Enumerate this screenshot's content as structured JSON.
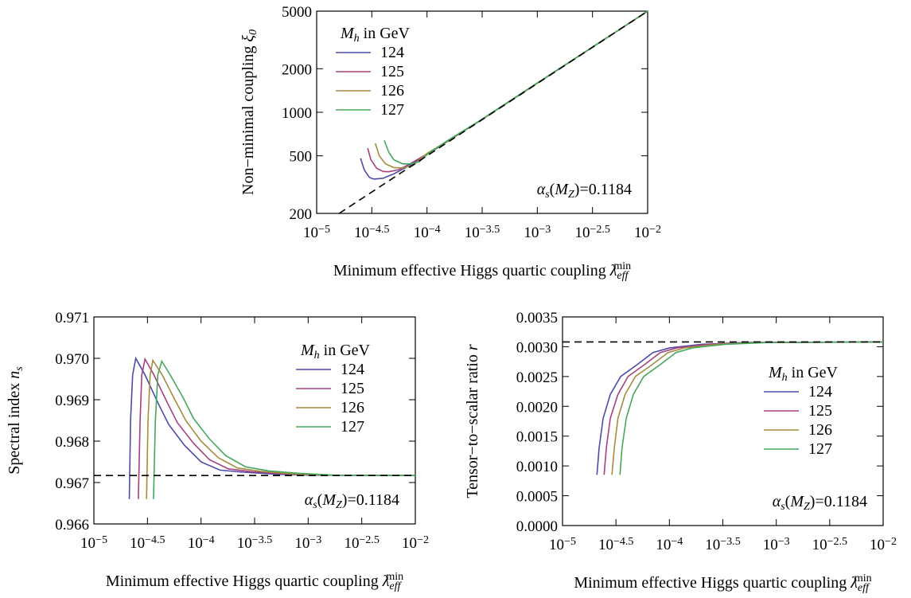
{
  "chart_data": [
    {
      "type": "line",
      "xscale": "log",
      "yscale": "log",
      "xlim": [
        1e-05,
        0.01
      ],
      "ylim": [
        200,
        5000
      ],
      "xticks": [
        {
          "value": 1e-05,
          "label": {
            "base": "10",
            "exponent": "−5"
          }
        },
        {
          "value": 3.1622776601683795e-05,
          "label": {
            "base": "10",
            "exponent": "−4.5"
          }
        },
        {
          "value": 0.0001,
          "label": {
            "base": "10",
            "exponent": "−4"
          }
        },
        {
          "value": 0.00031622776601683794,
          "label": {
            "base": "10",
            "exponent": "−3.5"
          }
        },
        {
          "value": 0.001,
          "label": {
            "base": "10",
            "exponent": "−3"
          }
        },
        {
          "value": 0.0031622776601683794,
          "label": {
            "base": "10",
            "exponent": "−2.5"
          }
        },
        {
          "value": 0.01,
          "label": {
            "base": "10",
            "exponent": "−2"
          }
        }
      ],
      "yticks": [
        200,
        500,
        1000,
        2000,
        5000
      ],
      "x_label": [
        {
          "text": "Minimum effective Higgs quartic coupling  "
        },
        {
          "text": "λ",
          "style": "i"
        },
        {
          "text": "eff",
          "style": "sub"
        },
        {
          "text": "min",
          "style": "sup"
        }
      ],
      "y_label": [
        {
          "text": "Non−minimal coupling "
        },
        {
          "text": "ξ",
          "style": "i"
        },
        {
          "text": "0",
          "style": "sub"
        }
      ],
      "legend_title": [
        {
          "text": "M",
          "style": "i"
        },
        {
          "text": "h",
          "style": "sub"
        },
        {
          "text": " in GeV"
        }
      ],
      "legend": "upper left",
      "annotation": [
        {
          "text": "α",
          "style": "i"
        },
        {
          "text": "s",
          "style": "sub"
        },
        {
          "text": "("
        },
        {
          "text": "M",
          "style": "i"
        },
        {
          "text": "Z",
          "style": "sub"
        },
        {
          "text": ")=0.1184"
        }
      ],
      "series": [
        {
          "name": "124",
          "color": "#4b4ba8",
          "x": [
            2.5e-05,
            2.7e-05,
            3e-05,
            3.3e-05,
            4e-05,
            5e-05,
            7e-05,
            0.0001,
            0.0003,
            0.001,
            0.01
          ],
          "values": [
            480,
            400,
            355,
            345,
            350,
            375,
            430,
            510,
            870,
            1590,
            5000
          ]
        },
        {
          "name": "125",
          "color": "#a5407e",
          "x": [
            2.9e-05,
            3.1e-05,
            3.5e-05,
            4e-05,
            4.5e-05,
            5.5e-05,
            7e-05,
            0.0001,
            0.0003,
            0.001,
            0.01
          ],
          "values": [
            565,
            470,
            410,
            390,
            388,
            400,
            440,
            515,
            870,
            1590,
            5000
          ]
        },
        {
          "name": "126",
          "color": "#a58c3e",
          "x": [
            3.4e-05,
            3.7e-05,
            4.2e-05,
            5e-05,
            6e-05,
            7.5e-05,
            0.0001,
            0.00015,
            0.0003,
            0.001,
            0.01
          ],
          "values": [
            610,
            500,
            440,
            415,
            412,
            430,
            520,
            625,
            872,
            1592,
            5000
          ]
        },
        {
          "name": "127",
          "color": "#44a85a",
          "x": [
            4.1e-05,
            4.5e-05,
            5e-05,
            6e-05,
            7e-05,
            8.5e-05,
            0.0001,
            0.00015,
            0.0003,
            0.001,
            0.01
          ],
          "values": [
            640,
            530,
            470,
            440,
            440,
            455,
            510,
            630,
            875,
            1595,
            5000
          ]
        },
        {
          "color": "#000000",
          "dashed": true,
          "x": [
            1.6e-05,
            0.01
          ],
          "values": [
            200,
            5000
          ]
        }
      ]
    },
    {
      "type": "line",
      "xscale": "log",
      "yscale": "linear",
      "xlim": [
        1e-05,
        0.01
      ],
      "ylim": [
        0.966,
        0.971
      ],
      "xticks": [
        {
          "value": 1e-05,
          "label": {
            "base": "10",
            "exponent": "−5"
          }
        },
        {
          "value": 3.1622776601683795e-05,
          "label": {
            "base": "10",
            "exponent": "−4.5"
          }
        },
        {
          "value": 0.0001,
          "label": {
            "base": "10",
            "exponent": "−4"
          }
        },
        {
          "value": 0.00031622776601683794,
          "label": {
            "base": "10",
            "exponent": "−3.5"
          }
        },
        {
          "value": 0.001,
          "label": {
            "base": "10",
            "exponent": "−3"
          }
        },
        {
          "value": 0.0031622776601683794,
          "label": {
            "base": "10",
            "exponent": "−2.5"
          }
        },
        {
          "value": 0.01,
          "label": {
            "base": "10",
            "exponent": "−2"
          }
        }
      ],
      "yticks": [
        0.966,
        0.967,
        0.968,
        0.969,
        {
          "value": 0.97,
          "label": "0.970"
        },
        0.971
      ],
      "x_label": [
        {
          "text": "Minimum effective Higgs quartic coupling  "
        },
        {
          "text": "λ",
          "style": "i"
        },
        {
          "text": "eff",
          "style": "sub"
        },
        {
          "text": "min",
          "style": "sup"
        }
      ],
      "y_label": [
        {
          "text": "Spectral index "
        },
        {
          "text": "n",
          "style": "i"
        },
        {
          "text": "s",
          "style": "sub"
        }
      ],
      "legend_title": [
        {
          "text": "M",
          "style": "i"
        },
        {
          "text": "h",
          "style": "sub"
        },
        {
          "text": " in GeV"
        }
      ],
      "legend": "upper right",
      "annotation": [
        {
          "text": "α",
          "style": "i"
        },
        {
          "text": "s",
          "style": "sub"
        },
        {
          "text": "("
        },
        {
          "text": "M",
          "style": "i"
        },
        {
          "text": "Z",
          "style": "sub"
        },
        {
          "text": ")=0.1184"
        }
      ],
      "series": [
        {
          "name": "124",
          "color": "#4b4ba8",
          "x": [
            2.14e-05,
            2.2e-05,
            2.3e-05,
            2.46e-05,
            3e-05,
            4e-05,
            5e-05,
            7e-05,
            0.0001,
            0.00015,
            0.00025,
            0.0005,
            0.001,
            0.01
          ],
          "values": [
            0.9666,
            0.9685,
            0.9696,
            0.97,
            0.9696,
            0.9689,
            0.9684,
            0.9679,
            0.9675,
            0.9673,
            0.96725,
            0.9672,
            0.96718,
            0.96717
          ]
        },
        {
          "name": "125",
          "color": "#a5407e",
          "x": [
            2.6e-05,
            2.7e-05,
            2.8e-05,
            3e-05,
            3.6e-05,
            4.8e-05,
            6e-05,
            8.5e-05,
            0.00012,
            0.00018,
            0.0003,
            0.0006,
            0.0012,
            0.01
          ],
          "values": [
            0.9666,
            0.9685,
            0.9696,
            0.96998,
            0.96962,
            0.96895,
            0.96845,
            0.96795,
            0.96755,
            0.96733,
            0.96726,
            0.96721,
            0.96718,
            0.96717
          ]
        },
        {
          "name": "126",
          "color": "#a58c3e",
          "x": [
            3.1e-05,
            3.2e-05,
            3.35e-05,
            3.55e-05,
            4.3e-05,
            5.7e-05,
            7.2e-05,
            0.0001,
            0.000145,
            0.00022,
            0.00036,
            0.0007,
            0.0014,
            0.01
          ],
          "values": [
            0.9666,
            0.9685,
            0.9696,
            0.96995,
            0.96962,
            0.969,
            0.9685,
            0.968,
            0.9676,
            0.96735,
            0.96727,
            0.96721,
            0.96718,
            0.96717
          ]
        },
        {
          "name": "127",
          "color": "#44a85a",
          "x": [
            3.6e-05,
            3.75e-05,
            3.95e-05,
            4.3e-05,
            5.1e-05,
            6.8e-05,
            8.5e-05,
            0.00012,
            0.00017,
            0.00026,
            0.00043,
            0.00085,
            0.0017,
            0.01
          ],
          "values": [
            0.9666,
            0.9685,
            0.9696,
            0.96993,
            0.96962,
            0.96905,
            0.96855,
            0.96805,
            0.96765,
            0.96738,
            0.96728,
            0.96722,
            0.96718,
            0.96717
          ]
        },
        {
          "color": "#000000",
          "dashed": true,
          "x": [
            1e-05,
            0.01
          ],
          "values": [
            0.96717,
            0.96717
          ]
        }
      ]
    },
    {
      "type": "line",
      "xscale": "log",
      "yscale": "linear",
      "xlim": [
        1e-05,
        0.01
      ],
      "ylim": [
        0,
        0.0035
      ],
      "xticks": [
        {
          "value": 1e-05,
          "label": {
            "base": "10",
            "exponent": "−5"
          }
        },
        {
          "value": 3.1622776601683795e-05,
          "label": {
            "base": "10",
            "exponent": "−4.5"
          }
        },
        {
          "value": 0.0001,
          "label": {
            "base": "10",
            "exponent": "−4"
          }
        },
        {
          "value": 0.00031622776601683794,
          "label": {
            "base": "10",
            "exponent": "−3.5"
          }
        },
        {
          "value": 0.001,
          "label": {
            "base": "10",
            "exponent": "−3"
          }
        },
        {
          "value": 0.0031622776601683794,
          "label": {
            "base": "10",
            "exponent": "−2.5"
          }
        },
        {
          "value": 0.01,
          "label": {
            "base": "10",
            "exponent": "−2"
          }
        }
      ],
      "yticks": [
        {
          "value": 0,
          "label": "0.0000"
        },
        0.0005,
        {
          "value": 0.001,
          "label": "0.0010"
        },
        0.0015,
        {
          "value": 0.002,
          "label": "0.0020"
        },
        0.0025,
        {
          "value": 0.003,
          "label": "0.0030"
        },
        0.0035
      ],
      "x_label": [
        {
          "text": "Minimum effective Higgs quartic coupling  "
        },
        {
          "text": "λ",
          "style": "i"
        },
        {
          "text": "eff",
          "style": "sub"
        },
        {
          "text": "min",
          "style": "sup"
        }
      ],
      "y_label": [
        {
          "text": "Tensor−to−scalar ratio "
        },
        {
          "text": "r",
          "style": "i"
        }
      ],
      "legend_title": [
        {
          "text": "M",
          "style": "i"
        },
        {
          "text": "h",
          "style": "sub"
        },
        {
          "text": " in GeV"
        }
      ],
      "legend": "center right",
      "annotation": [
        {
          "text": "α",
          "style": "i"
        },
        {
          "text": "s",
          "style": "sub"
        },
        {
          "text": "("
        },
        {
          "text": "M",
          "style": "i"
        },
        {
          "text": "Z",
          "style": "sub"
        },
        {
          "text": ")=0.1184"
        }
      ],
      "series": [
        {
          "name": "124",
          "color": "#4b4ba8",
          "x": [
            2.1e-05,
            2.2e-05,
            2.4e-05,
            2.8e-05,
            3.5e-05,
            5e-05,
            7e-05,
            0.0001,
            0.0002,
            0.0005,
            0.01
          ],
          "values": [
            0.00085,
            0.0013,
            0.0018,
            0.0022,
            0.0025,
            0.0027,
            0.0029,
            0.00298,
            0.00304,
            0.00307,
            0.00308
          ]
        },
        {
          "name": "125",
          "color": "#a5407e",
          "x": [
            2.45e-05,
            2.57e-05,
            2.8e-05,
            3.3e-05,
            4.1e-05,
            5.85e-05,
            8.2e-05,
            0.000117,
            0.00023,
            0.00058,
            0.01
          ],
          "values": [
            0.00085,
            0.0013,
            0.0018,
            0.0022,
            0.0025,
            0.0027,
            0.0029,
            0.00298,
            0.00304,
            0.00307,
            0.00308
          ]
        },
        {
          "name": "126",
          "color": "#a58c3e",
          "x": [
            2.9e-05,
            3.05e-05,
            3.3e-05,
            3.85e-05,
            4.8e-05,
            6.9e-05,
            9.7e-05,
            0.000138,
            0.00028,
            0.00069,
            0.01
          ],
          "values": [
            0.00085,
            0.0013,
            0.0018,
            0.0022,
            0.0025,
            0.0027,
            0.0029,
            0.00298,
            0.00304,
            0.00307,
            0.00308
          ]
        },
        {
          "name": "127",
          "color": "#44a85a",
          "x": [
            3.45e-05,
            3.6e-05,
            3.95e-05,
            4.6e-05,
            5.75e-05,
            8.2e-05,
            0.000115,
            0.000164,
            0.00033,
            0.00082,
            0.01
          ],
          "values": [
            0.00085,
            0.0013,
            0.0018,
            0.0022,
            0.0025,
            0.0027,
            0.0029,
            0.00298,
            0.00304,
            0.00307,
            0.00308
          ]
        },
        {
          "color": "#000000",
          "dashed": true,
          "x": [
            1e-05,
            0.01
          ],
          "values": [
            0.00308,
            0.00308
          ]
        }
      ]
    }
  ]
}
